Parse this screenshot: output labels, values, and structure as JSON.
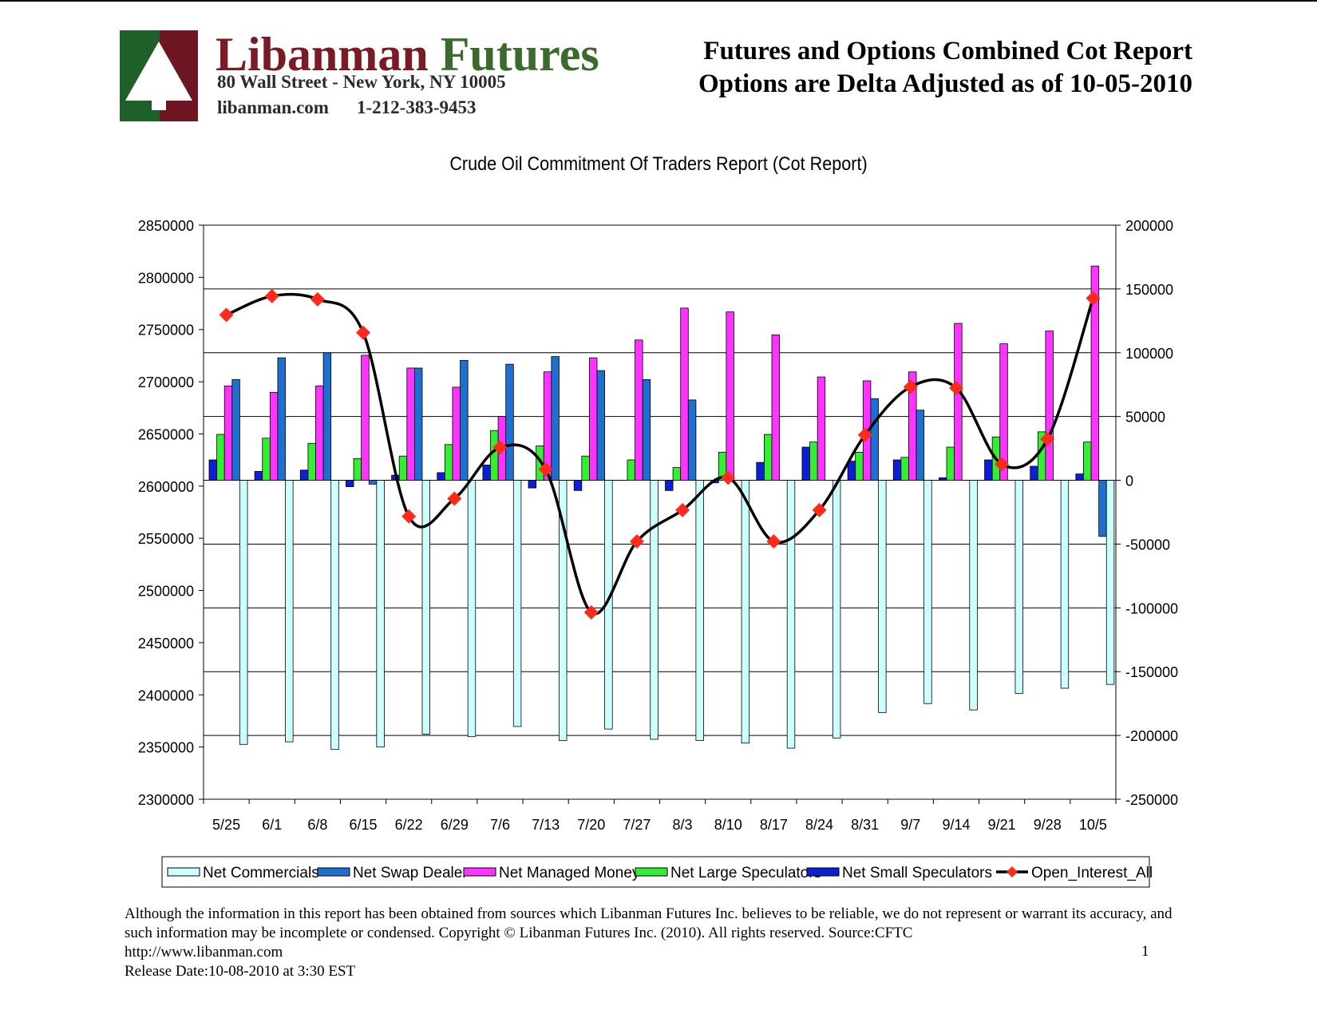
{
  "header": {
    "brand_name_part1": "Libanman",
    "brand_name_part2": "Futures",
    "address": "80 Wall Street - New York, NY 10005",
    "website": "libanman.com",
    "phone": "1-212-383-9453",
    "report_title_line1": "Futures and Options Combined Cot Report",
    "report_title_line2": "Options are Delta Adjusted as of 10-05-2010"
  },
  "colors": {
    "net_commercials": "#ccffff",
    "net_swap_dealer": "#1f6fd1",
    "net_managed_money": "#ff33ff",
    "net_large_speculators": "#33ee33",
    "net_small_speculators": "#0b1fd6",
    "open_interest_line": "#000000",
    "open_interest_marker": "#ff2a1a"
  },
  "chart_data": {
    "type": "bar",
    "title": "Crude Oil Commitment Of Traders Report (Cot Report)",
    "categories": [
      "5/25",
      "6/1",
      "6/8",
      "6/15",
      "6/22",
      "6/29",
      "7/6",
      "7/13",
      "7/20",
      "7/27",
      "8/3",
      "8/10",
      "8/17",
      "8/24",
      "8/31",
      "9/7",
      "9/14",
      "9/21",
      "9/28",
      "10/5"
    ],
    "left_axis": {
      "ylim": [
        2300000,
        2850000
      ],
      "ticks": [
        "2850000",
        "2800000",
        "2750000",
        "2700000",
        "2650000",
        "2600000",
        "2550000",
        "2500000",
        "2450000",
        "2400000",
        "2350000",
        "2300000"
      ]
    },
    "right_axis": {
      "ylim": [
        -250000,
        200000
      ],
      "ticks": [
        "200000",
        "150000",
        "100000",
        "50000",
        "0",
        "-50000",
        "-100000",
        "-150000",
        "-200000",
        "-250000"
      ]
    },
    "grid": "horizontal lines",
    "legend_position": "bottom",
    "series": [
      {
        "name": "Net Commercials",
        "axis": "right",
        "kind": "bar",
        "values": [
          -207000,
          -205000,
          -211000,
          -209000,
          -199000,
          -201000,
          -193000,
          -204000,
          -195000,
          -203000,
          -204000,
          -206000,
          -210000,
          -202000,
          -182000,
          -175000,
          -180000,
          -167000,
          -163000,
          -160000
        ]
      },
      {
        "name": "Net Swap Dealer",
        "axis": "right",
        "kind": "bar",
        "values": [
          79000,
          96000,
          100000,
          -3000,
          88000,
          94000,
          91000,
          97000,
          86000,
          79000,
          63000,
          0,
          0,
          0,
          64000,
          55000,
          0,
          0,
          0,
          -44000
        ]
      },
      {
        "name": "Net Managed Money",
        "axis": "right",
        "kind": "bar",
        "values": [
          74000,
          69000,
          74000,
          98000,
          88000,
          73000,
          50000,
          85000,
          96000,
          110000,
          135000,
          132000,
          114000,
          81000,
          78000,
          85000,
          123000,
          107000,
          117000,
          168000
        ]
      },
      {
        "name": "Net Large Speculators",
        "axis": "right",
        "kind": "bar",
        "values": [
          36000,
          33000,
          29000,
          17000,
          19000,
          28000,
          39000,
          27000,
          19000,
          16000,
          10000,
          22000,
          36000,
          30000,
          22000,
          18000,
          26000,
          34000,
          38000,
          30000
        ]
      },
      {
        "name": "Net Small Speculators",
        "axis": "right",
        "kind": "bar",
        "values": [
          16000,
          7000,
          8000,
          -5000,
          4000,
          6000,
          12000,
          -6000,
          -8000,
          0,
          -8000,
          -2000,
          14000,
          26000,
          15000,
          16000,
          2000,
          16000,
          11000,
          5000
        ]
      },
      {
        "name": "Open_Interest_All",
        "axis": "left",
        "kind": "line",
        "values": [
          2764000,
          2782000,
          2779000,
          2747000,
          2571000,
          2588000,
          2637000,
          2616000,
          2479000,
          2547000,
          2577000,
          2608000,
          2547000,
          2577000,
          2649000,
          2695000,
          2694000,
          2621000,
          2645000,
          2780000
        ]
      }
    ]
  },
  "legend": {
    "items": [
      "Net Commercials",
      "Net Swap Dealer",
      "Net Managed Money",
      "Net Large Speculators",
      "Net Small Speculators",
      "Open_Interest_All"
    ]
  },
  "footer": {
    "disclaimer": "Although the information in this report has been obtained from sources which Libanman Futures Inc. believes to be reliable, we do not represent or warrant its accuracy, and such information may be incomplete or condensed. Copyright © Libanman Futures Inc. (2010). All rights reserved.  Source:CFTC",
    "url": "http://www.libanman.com",
    "release": "Release Date:10-08-2010 at 3:30 EST",
    "page_number": "1"
  }
}
